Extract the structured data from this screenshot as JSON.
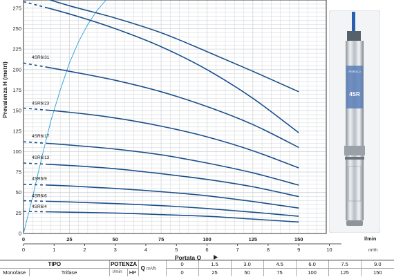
{
  "chart_data": {
    "type": "line",
    "title": "",
    "xlabel": "Portata Q",
    "ylabel": "Prevalenza H (metri)",
    "x_unit": "l/min",
    "x_unit_secondary": "m³/h",
    "xlim": [
      0,
      165
    ],
    "ylim": [
      0,
      285
    ],
    "x_ticks": [
      0,
      25,
      50,
      75,
      100,
      125,
      150
    ],
    "x_ticks_secondary": [
      0,
      1,
      2,
      3,
      4,
      5,
      6,
      7,
      8,
      9,
      10
    ],
    "y_ticks": [
      0,
      25,
      50,
      75,
      100,
      125,
      150,
      175,
      200,
      225,
      250,
      275
    ],
    "grid": true,
    "series": [
      {
        "name": "",
        "label_y": 0,
        "x": [
          0,
          25,
          50,
          75,
          100,
          125,
          150
        ],
        "y": [
          295,
          278,
          263,
          245,
          222,
          198,
          173
        ]
      },
      {
        "name": "",
        "label_y": 0,
        "x": [
          0,
          25,
          50,
          75,
          100,
          125,
          150
        ],
        "y": [
          283,
          268,
          250,
          228,
          200,
          165,
          123
        ]
      },
      {
        "name": "4SR6/31",
        "label_y": 209,
        "x": [
          0,
          25,
          50,
          75,
          100,
          125,
          150
        ],
        "y": [
          208,
          198,
          187,
          173,
          155,
          133,
          105
        ]
      },
      {
        "name": "4SR6/23",
        "label_y": 153,
        "x": [
          0,
          25,
          50,
          75,
          100,
          125,
          150
        ],
        "y": [
          153,
          148,
          141,
          131,
          118,
          101,
          80
        ]
      },
      {
        "name": "4SR6/17",
        "label_y": 113,
        "x": [
          0,
          25,
          50,
          75,
          100,
          125,
          150
        ],
        "y": [
          112,
          108,
          103,
          96,
          86,
          74,
          59
        ]
      },
      {
        "name": "4SR6/13",
        "label_y": 87,
        "x": [
          0,
          25,
          50,
          75,
          100,
          125,
          150
        ],
        "y": [
          86,
          83,
          79,
          73,
          66,
          57,
          45
        ]
      },
      {
        "name": "4SR6/9",
        "label_y": 61,
        "x": [
          0,
          25,
          50,
          75,
          100,
          125,
          150
        ],
        "y": [
          60,
          58,
          55,
          51,
          46,
          39,
          31
        ]
      },
      {
        "name": "4SR6/6",
        "label_y": 40,
        "x": [
          0,
          25,
          50,
          75,
          100,
          125,
          150
        ],
        "y": [
          40,
          38.5,
          36.5,
          34,
          30.5,
          26,
          21
        ]
      },
      {
        "name": "4SR6/4",
        "label_y": 27,
        "x": [
          0,
          25,
          50,
          75,
          100,
          125,
          150
        ],
        "y": [
          27,
          26,
          25,
          23,
          21,
          17.5,
          14
        ]
      }
    ],
    "efficiency_curve": {
      "x": [
        0,
        5,
        10,
        15,
        20,
        25,
        30,
        35,
        40,
        45,
        50,
        55
      ],
      "y": [
        0,
        45,
        93,
        138,
        175,
        208,
        234,
        255,
        272,
        285,
        295,
        305
      ]
    }
  },
  "product": {
    "brand": "PEDROLLO",
    "model": "4SR"
  },
  "table": {
    "tipo": "TIPO",
    "potenza": "POTENZA",
    "q_label": "Q",
    "units_row1": "m³/h",
    "units_row2": "l/min",
    "sub_labels": [
      "Monofase",
      "Trifase",
      "kW",
      "HP"
    ],
    "q_m3h": [
      "0",
      "1.5",
      "3.0",
      "4.5",
      "6.0",
      "7.5",
      "9.0"
    ],
    "q_lmin": [
      "0",
      "25",
      "50",
      "75",
      "100",
      "125",
      "150"
    ]
  },
  "colors": {
    "curve": "#1a4f8a",
    "efficiency": "#2a9ed6",
    "grid": "#cfd3d8",
    "frame": "#333333"
  }
}
